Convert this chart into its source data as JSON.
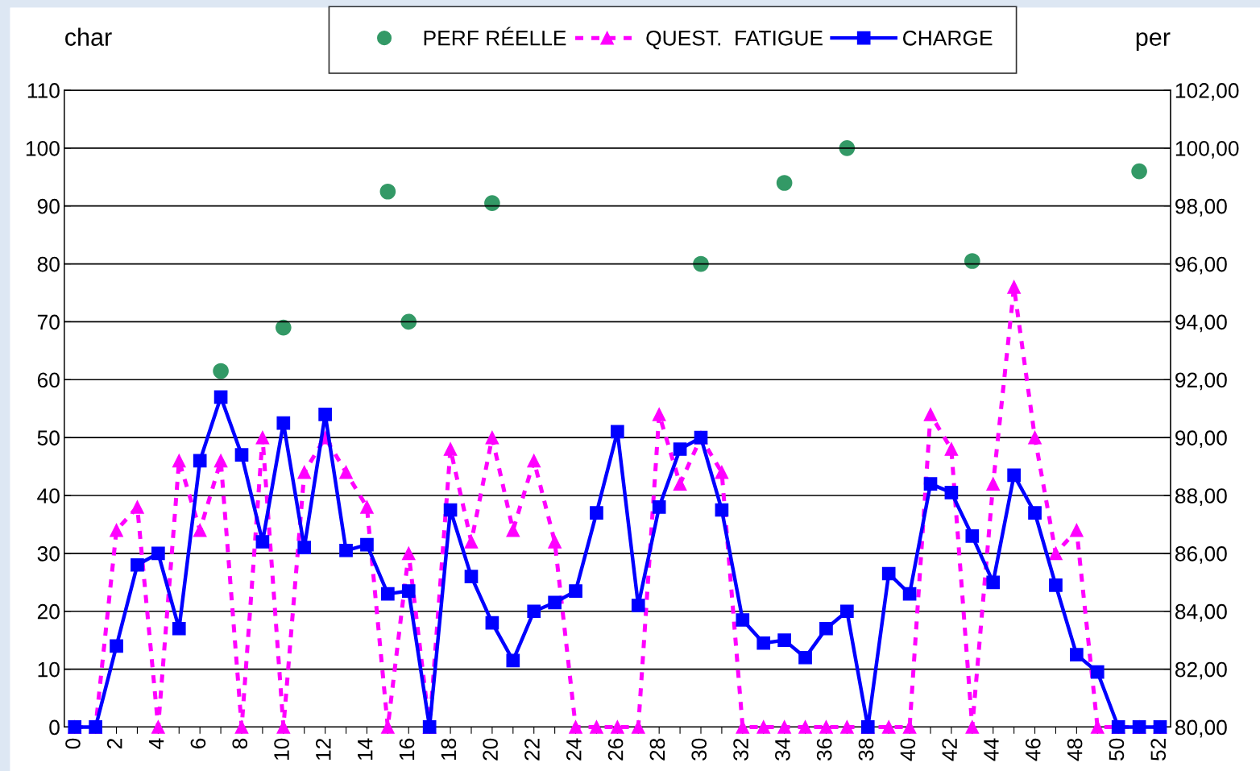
{
  "chart_data": {
    "type": "line",
    "ylabel": "char",
    "y2label": "per",
    "legend": "top",
    "grid": "y",
    "x": [
      0,
      1,
      2,
      3,
      4,
      5,
      6,
      7,
      8,
      9,
      10,
      11,
      12,
      13,
      14,
      15,
      16,
      17,
      18,
      19,
      20,
      21,
      22,
      23,
      24,
      25,
      26,
      27,
      28,
      29,
      30,
      31,
      32,
      33,
      34,
      35,
      36,
      37,
      38,
      39,
      40,
      41,
      42,
      43,
      44,
      45,
      46,
      47,
      48,
      49,
      50,
      51,
      52
    ],
    "xlim": [
      -0.5,
      52.5
    ],
    "xticks": [
      0,
      {
        "value": 1,
        "label": null
      },
      2,
      {
        "value": 3,
        "label": null
      },
      4,
      {
        "value": 5,
        "label": null
      },
      6,
      {
        "value": 7,
        "label": null
      },
      8,
      {
        "value": 9,
        "label": null
      },
      10,
      {
        "value": 11,
        "label": null
      },
      12,
      {
        "value": 13,
        "label": null
      },
      14,
      {
        "value": 15,
        "label": null
      },
      16,
      {
        "value": 17,
        "label": null
      },
      18,
      {
        "value": 19,
        "label": null
      },
      20,
      {
        "value": 21,
        "label": null
      },
      22,
      {
        "value": 23,
        "label": null
      },
      24,
      {
        "value": 25,
        "label": null
      },
      26,
      {
        "value": 27,
        "label": null
      },
      28,
      {
        "value": 29,
        "label": null
      },
      30,
      {
        "value": 31,
        "label": null
      },
      32,
      {
        "value": 33,
        "label": null
      },
      34,
      {
        "value": 35,
        "label": null
      },
      36,
      {
        "value": 37,
        "label": null
      },
      38,
      {
        "value": 39,
        "label": null
      },
      40,
      {
        "value": 41,
        "label": null
      },
      42,
      {
        "value": 43,
        "label": null
      },
      44,
      {
        "value": 45,
        "label": null
      },
      46,
      {
        "value": 47,
        "label": null
      },
      48,
      {
        "value": 49,
        "label": null
      },
      50,
      {
        "value": 51,
        "label": null
      },
      52
    ],
    "ylim": [
      0,
      110
    ],
    "yticks": [
      0,
      10,
      20,
      30,
      40,
      50,
      60,
      70,
      80,
      90,
      100,
      110
    ],
    "y2lim": [
      80,
      102
    ],
    "y2ticks": [
      {
        "value": 80,
        "label": "80,00"
      },
      {
        "value": 82,
        "label": "82,00"
      },
      {
        "value": 84,
        "label": "84,00"
      },
      {
        "value": 86,
        "label": "86,00"
      },
      {
        "value": 88,
        "label": "88,00"
      },
      {
        "value": 90,
        "label": "90,00"
      },
      {
        "value": 92,
        "label": "92,00"
      },
      {
        "value": 94,
        "label": "94,00"
      },
      {
        "value": 96,
        "label": "96,00"
      },
      {
        "value": 98,
        "label": "98,00"
      },
      {
        "value": 100,
        "label": "100,00"
      },
      {
        "value": 102,
        "label": "102,00"
      }
    ],
    "series": [
      {
        "name": "PERF RÉELLE",
        "type": "scatter",
        "axis": "y2",
        "color": "#339966",
        "marker": "circle",
        "x": [
          7,
          10,
          15,
          16,
          20,
          30,
          34,
          37,
          43,
          51
        ],
        "values": [
          92.3,
          93.8,
          98.5,
          94.0,
          98.1,
          96.0,
          98.8,
          100.0,
          96.1,
          99.2
        ]
      },
      {
        "name": "QUEST.  FATIGUE",
        "color": "#ff00ff",
        "marker": "triangle",
        "line_style": "dashed",
        "values": [
          0,
          0,
          34,
          38,
          0,
          46,
          34,
          46,
          0,
          50,
          0,
          44,
          50,
          44,
          38,
          0,
          30,
          0,
          48,
          32,
          50,
          34,
          46,
          32,
          0,
          0,
          0,
          0,
          54,
          42,
          50,
          44,
          0,
          0,
          0,
          0,
          0,
          0,
          0,
          0,
          0,
          54,
          48,
          0,
          42,
          76,
          50,
          30,
          34,
          0,
          0,
          0,
          0
        ]
      },
      {
        "name": "CHARGE",
        "color": "#0000ff",
        "marker": "square",
        "line_style": "solid",
        "values": [
          0,
          0,
          14,
          28,
          30,
          17,
          46,
          57,
          47,
          32,
          52.5,
          31,
          54,
          30.5,
          31.5,
          23,
          23.5,
          0,
          37.5,
          26,
          18,
          11.5,
          20,
          21.5,
          23.5,
          37,
          51,
          21,
          38,
          48,
          50,
          37.5,
          18.5,
          14.5,
          15,
          12,
          17,
          20,
          0,
          26.5,
          23,
          42,
          40.5,
          33,
          25,
          43.5,
          37,
          24.5,
          12.5,
          9.5,
          0,
          0,
          0
        ]
      }
    ]
  }
}
